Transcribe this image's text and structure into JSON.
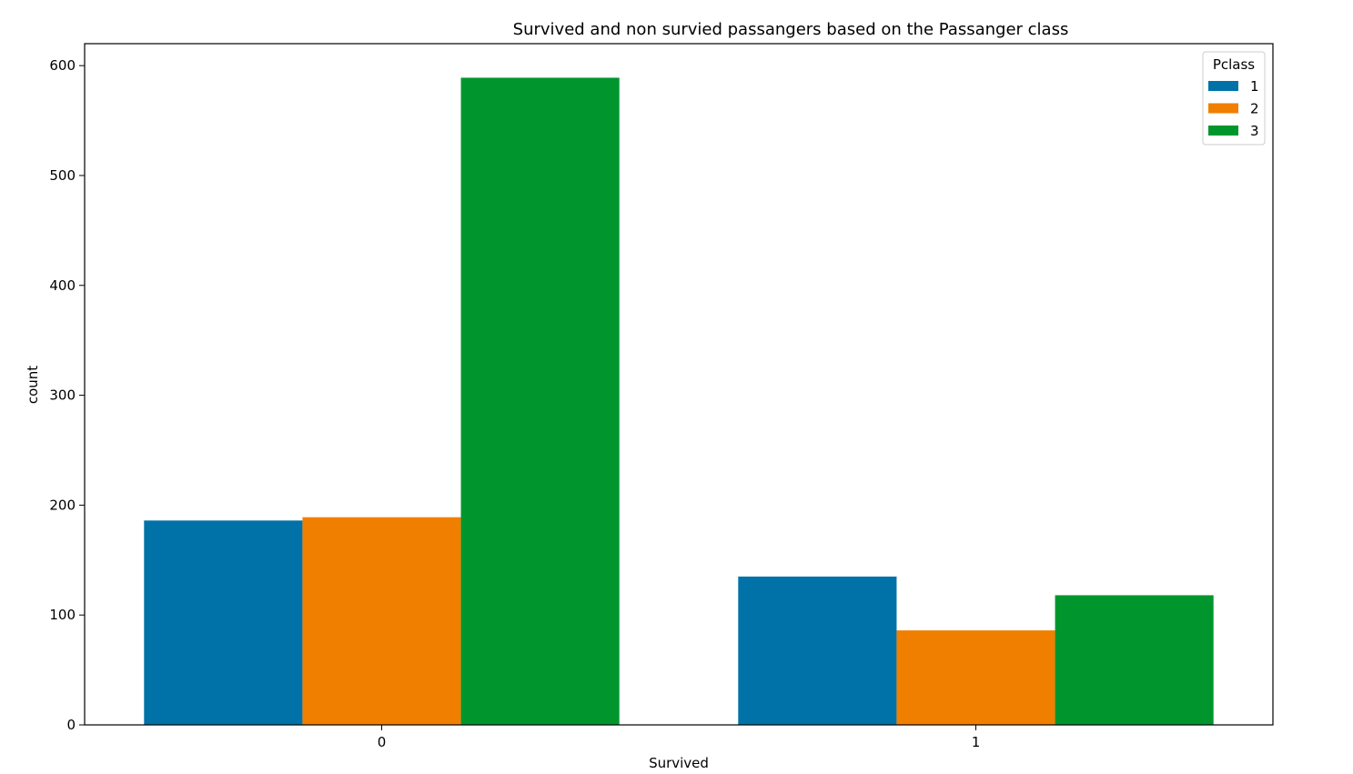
{
  "chart_data": {
    "type": "bar",
    "title": "Survived and non survied passangers based on the Passanger class",
    "xlabel": "Survived",
    "ylabel": "count",
    "categories": [
      "0",
      "1"
    ],
    "series": [
      {
        "name": "1",
        "values": [
          186,
          135
        ],
        "color": "#0072a8"
      },
      {
        "name": "2",
        "values": [
          189,
          86
        ],
        "color": "#f07f00"
      },
      {
        "name": "3",
        "values": [
          589,
          118
        ],
        "color": "#00962d"
      }
    ],
    "ylim": [
      0,
      620
    ],
    "yticks": [
      0,
      100,
      200,
      300,
      400,
      500,
      600
    ],
    "legend": {
      "title": "Pclass",
      "position": "top-right"
    },
    "grid": false
  }
}
